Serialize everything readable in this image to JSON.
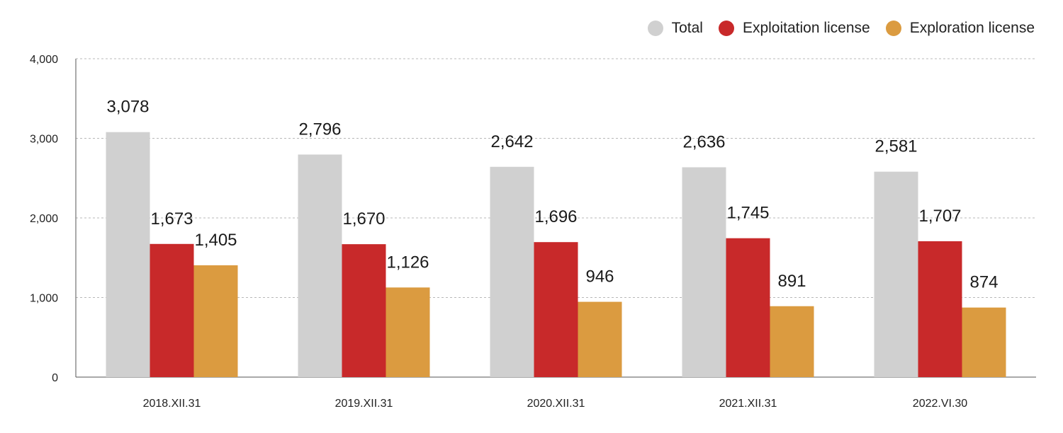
{
  "chart_data": {
    "type": "bar",
    "title": "",
    "xlabel": "",
    "ylabel": "",
    "categories": [
      "2018.XII.31",
      "2019.XII.31",
      "2020.XII.31",
      "2021.XII.31",
      "2022.VI.30"
    ],
    "series": [
      {
        "name": "Total",
        "color": "#d0d0d0",
        "values": [
          3078,
          2796,
          2642,
          2636,
          2581
        ],
        "labels": [
          "3,078",
          "2,796",
          "2,642",
          "2,636",
          "2,581"
        ]
      },
      {
        "name": "Exploitation license",
        "color": "#c8292a",
        "values": [
          1673,
          1670,
          1696,
          1745,
          1707
        ],
        "labels": [
          "1,673",
          "1,670",
          "1,696",
          "1,745",
          "1,707"
        ]
      },
      {
        "name": "Exploration license",
        "color": "#db9b40",
        "values": [
          1405,
          1126,
          946,
          891,
          874
        ],
        "labels": [
          "1,405",
          "1,126",
          "946",
          "891",
          "874"
        ]
      }
    ],
    "ylim": [
      0,
      4000
    ],
    "yticks": [
      0,
      1000,
      2000,
      3000,
      4000
    ],
    "ytick_labels": [
      "0",
      "1,000",
      "2,000",
      "3,000",
      "4,000"
    ],
    "grid": true,
    "legend_position": "top-right"
  }
}
